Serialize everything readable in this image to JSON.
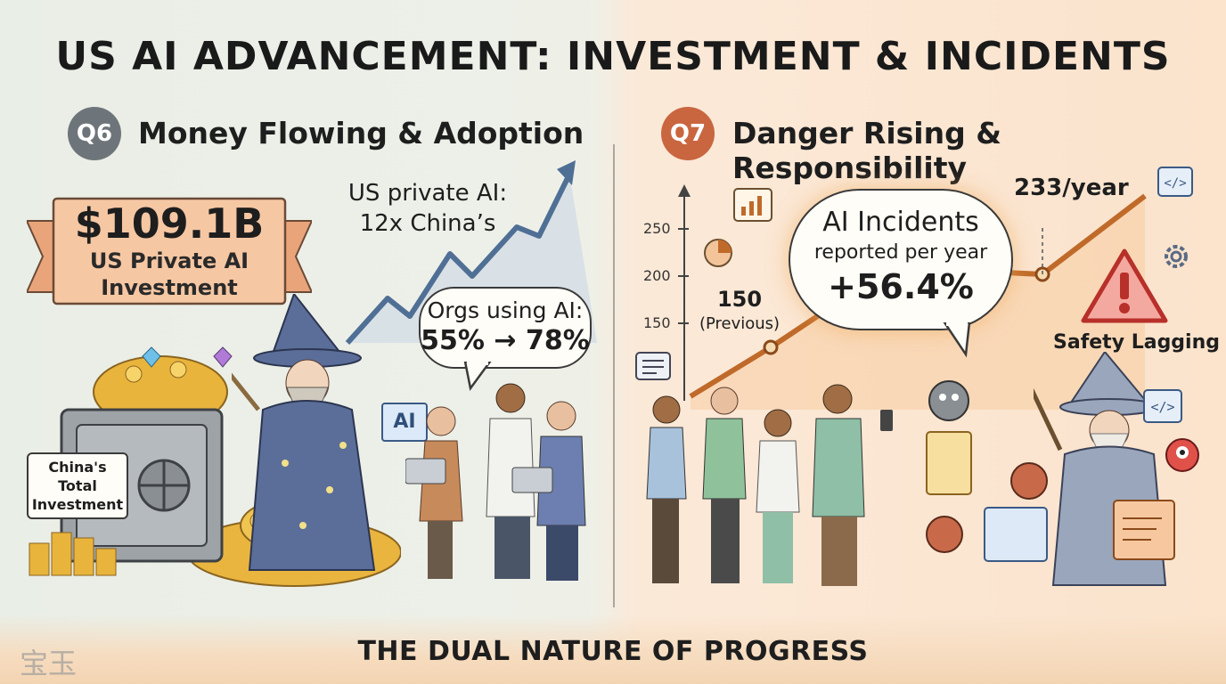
{
  "title": "US AI ADVANCEMENT: INVESTMENT & INCIDENTS",
  "left": {
    "badge": "Q6",
    "heading": "Money Flowing & Adoption",
    "banner_value": "$109.1B",
    "banner_line1": "US Private AI",
    "banner_line2": "Investment",
    "growth_line1": "US private AI:",
    "growth_line2": "12x China’s",
    "orgs_line1": "Orgs using AI:",
    "orgs_line2": "55% → 78%",
    "china_line1": "China's Total",
    "china_line2": "Investment",
    "ai_screen": "AI"
  },
  "right": {
    "badge": "Q7",
    "heading": "Danger Rising & Responsibility",
    "ticks": [
      "250",
      "200",
      "150"
    ],
    "prev_value": "150",
    "prev_label": "(Previous)",
    "current_label": "233/year",
    "bubble_line1": "AI Incidents",
    "bubble_line2": "reported per year",
    "bubble_change": "+56.4%",
    "safety_label": "Safety Lagging"
  },
  "footer": "THE DUAL NATURE OF PROGRESS",
  "watermark": "宝玉",
  "colors": {
    "left_badge": "#6e757a",
    "right_badge": "#c9663f",
    "trend_line": "#c06a2a",
    "arrow": "#4f6f95"
  }
}
